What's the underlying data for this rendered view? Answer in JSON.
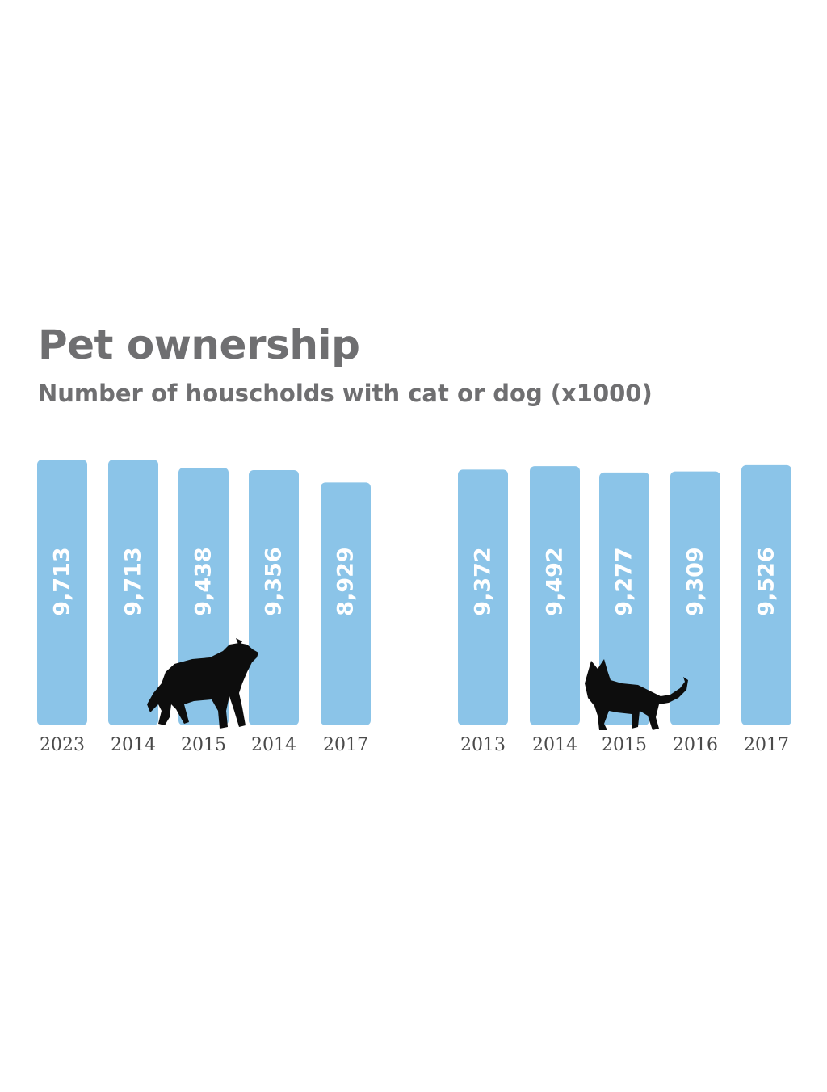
{
  "title": "Pet ownership",
  "subtitle": "Number of houscholds with cat or dog (x1000)",
  "colors": {
    "bar": "#8bc4e8",
    "text": "#6f6f71",
    "silhouette": "#0d0d0d"
  },
  "icons": {
    "left_panel": "dog-icon",
    "right_panel": "cat-icon"
  },
  "chart_data": [
    {
      "type": "bar",
      "categories": [
        "2023",
        "2014",
        "2015",
        "2014",
        "2017"
      ],
      "values": [
        9713,
        9713,
        9438,
        9356,
        8929
      ],
      "labels": [
        "9,713",
        "9,713",
        "9,438",
        "9,356",
        "8,929"
      ],
      "title": "",
      "xlabel": "",
      "ylabel": "",
      "grid": false,
      "legend": "none"
    },
    {
      "type": "bar",
      "categories": [
        "2013",
        "2014",
        "2015",
        "2016",
        "2017"
      ],
      "values": [
        9372,
        9492,
        9277,
        9309,
        9526
      ],
      "labels": [
        "9,372",
        "9,492",
        "9,277",
        "9,309",
        "9,526"
      ],
      "title": "",
      "xlabel": "",
      "ylabel": "",
      "grid": false,
      "legend": "none"
    }
  ]
}
